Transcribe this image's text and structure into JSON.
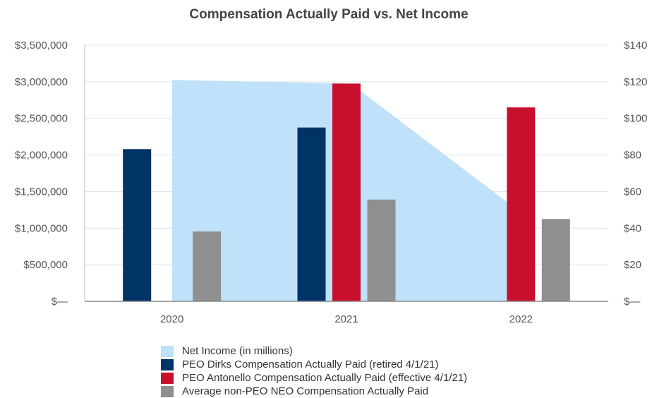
{
  "chart_data": {
    "type": "bar",
    "title": "Compensation Actually Paid vs. Net Income",
    "categories": [
      "2020",
      "2021",
      "2022"
    ],
    "ylim_left": [
      0,
      3500000
    ],
    "ylim_right": [
      0,
      140
    ],
    "left_ticks": [
      "$—",
      "$500,000",
      "$1,000,000",
      "$1,500,000",
      "$2,000,000",
      "$2,500,000",
      "$3,000,000",
      "$3,500,000"
    ],
    "right_ticks": [
      "$—",
      "$20",
      "$40",
      "$60",
      "$80",
      "$100",
      "$120",
      "$140"
    ],
    "grid": true,
    "legend_position": "bottom",
    "area_series": {
      "name": "Net Income (in millions)",
      "axis": "right",
      "color": "#bfe1fa",
      "values": [
        121,
        119,
        53
      ]
    },
    "series": [
      {
        "name": "PEO Dirks Compensation Actually Paid (retired 4/1/21)",
        "color": "#003366",
        "values": [
          2080000,
          2375000,
          null
        ]
      },
      {
        "name": "PEO Antonello Compensation Actually Paid (effective 4/1/21)",
        "color": "#c8102e",
        "values": [
          null,
          2975000,
          2650000
        ]
      },
      {
        "name": "Average non-PEO NEO Compensation Actually Paid",
        "color": "#8f8f8f",
        "values": [
          955000,
          1390000,
          1125000
        ]
      }
    ]
  }
}
